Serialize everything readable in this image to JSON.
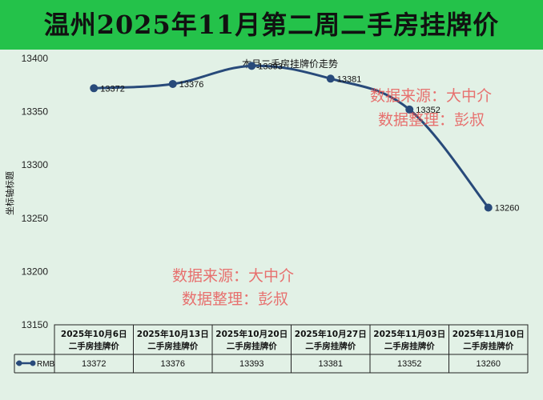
{
  "page": {
    "title": "温州2025年11月第二周二手房挂牌价",
    "watermark": [
      "数据来源：大中介",
      "数据整理：彭叔"
    ]
  },
  "chart_data": {
    "type": "line",
    "title": "本月二手房挂牌价走势",
    "ylabel": "坐标轴标题",
    "xlabel": "",
    "ylim": [
      13150,
      13400
    ],
    "yticks": [
      13150,
      13200,
      13250,
      13300,
      13350,
      13400
    ],
    "categories": [
      "2025年10月6日 二手房挂牌价",
      "2025年10月13日 二手房挂牌价",
      "2025年10月20日 二手房挂牌价",
      "2025年10月27日 二手房挂牌价",
      "2025年11月03日 二手房挂牌价",
      "2025年11月10日 二手房挂牌价"
    ],
    "category_lines": [
      [
        "2025年10月6日",
        "二手房挂牌价"
      ],
      [
        "2025年10月13日",
        "二手房挂牌价"
      ],
      [
        "2025年10月20日",
        "二手房挂牌价"
      ],
      [
        "2025年10月27日",
        "二手房挂牌价"
      ],
      [
        "2025年11月03日",
        "二手房挂牌价"
      ],
      [
        "2025年11月10日",
        "二手房挂牌价"
      ]
    ],
    "series": [
      {
        "name": "RMB",
        "values": [
          13372,
          13376,
          13393,
          13381,
          13352,
          13260
        ]
      }
    ],
    "line_color": "#284a7a",
    "grid": false,
    "legend": "data-table"
  }
}
